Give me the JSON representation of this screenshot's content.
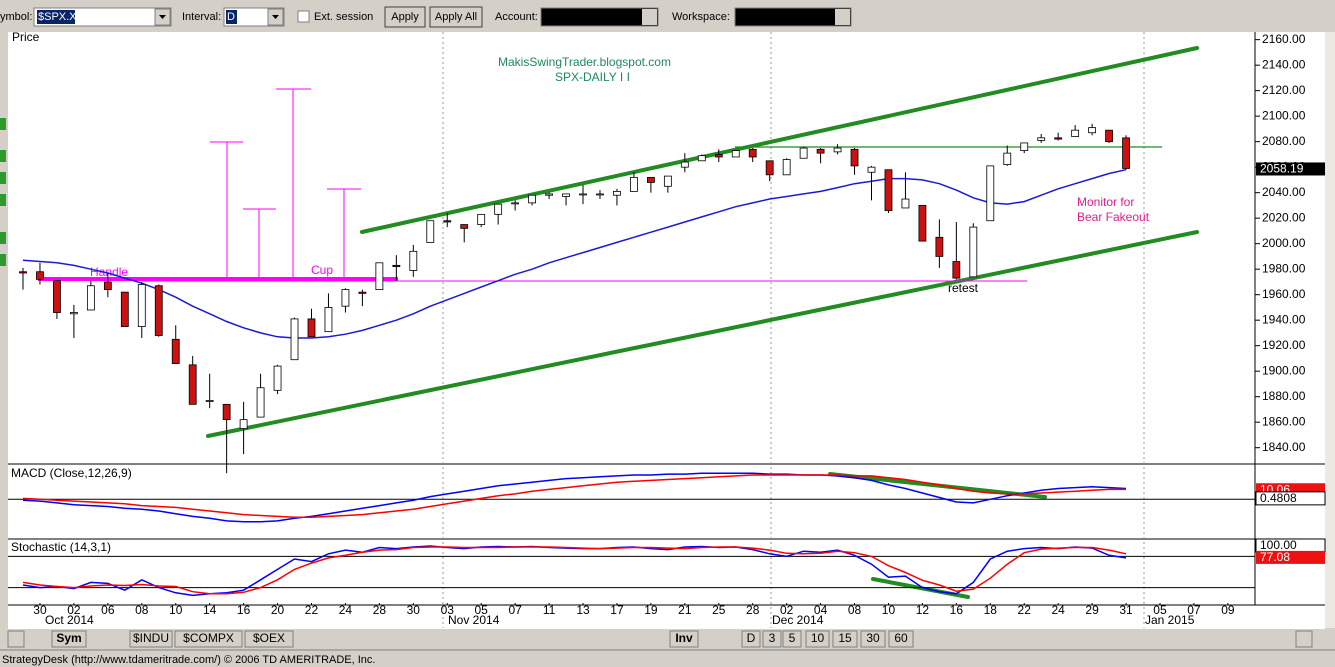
{
  "toolbar": {
    "symbol_label": "ymbol:",
    "symbol": "$SPX.X",
    "interval_label": "Interval:",
    "interval": "D",
    "ext_session": "Ext. session",
    "apply": "Apply",
    "apply_all": "Apply All",
    "account_label": "Account:",
    "workspace_label": "Workspace:"
  },
  "annotations": {
    "site": "MakisSwingTrader.blogspot.com",
    "subtitle": "SPX-DAILY  I I",
    "handle": "Handle",
    "cup": "Cup",
    "retest": "retest",
    "monitor_1": "Monitor for",
    "monitor_2": "Bear Fakeout"
  },
  "months": [
    "Oct 2014",
    "Nov 2014",
    "Dec 2014",
    "Jan 2015"
  ],
  "bottom_bar": {
    "tabs": [
      "Sym",
      "$INDU",
      "$COMPX",
      "$OEX"
    ],
    "inv": "Inv",
    "periods": [
      "D",
      "3",
      "5",
      "10",
      "15",
      "30",
      "60"
    ]
  },
  "status": "StrategyDesk (http://www.tdameritrade.com/) © 2006 TD AMERITRADE, Inc.",
  "chart_data": [
    {
      "type": "candlestick",
      "title": "Price",
      "categories": [
        null,
        "30",
        null,
        "02",
        null,
        "06",
        null,
        "08",
        null,
        "10",
        null,
        "14",
        null,
        "16",
        null,
        "20",
        null,
        "22",
        null,
        "24",
        null,
        "28",
        null,
        "30",
        null,
        "03",
        null,
        "05",
        null,
        "07",
        null,
        "11",
        null,
        "13",
        null,
        "17",
        null,
        "19",
        null,
        "21",
        null,
        "25",
        null,
        "28",
        null,
        "02",
        null,
        "04",
        null,
        "08",
        null,
        "10",
        null,
        "12",
        null,
        "16",
        null,
        "18",
        null,
        "22",
        null,
        "24",
        null,
        "29",
        null,
        "31",
        null,
        "05",
        null,
        "07",
        null,
        "09"
      ],
      "open": [
        1978,
        1978,
        1971,
        1945,
        1948,
        1970,
        1962,
        1935,
        1967,
        1925,
        1905,
        1877,
        1874,
        1855,
        1864,
        1885,
        1909,
        1941,
        1931,
        1951,
        1962,
        1964,
        1983,
        1979,
        2001,
        2018,
        2015,
        2015,
        2023,
        2032,
        2032,
        2038,
        2037,
        2039,
        2039,
        2038,
        2041,
        2052,
        2045,
        2060,
        2065,
        2070,
        2068,
        2074,
        2065,
        2054,
        2067,
        2074,
        2072,
        2074,
        2056,
        2058,
        2028,
        2030,
        2005,
        1986,
        1974,
        2018,
        2062,
        2073,
        2081,
        2083,
        2084,
        2087,
        2089,
        2083,
        null,
        null,
        null,
        null,
        null,
        null
      ],
      "high": [
        1981,
        1985,
        1971,
        1952,
        1971,
        1977,
        1962,
        1970,
        1968,
        1936,
        1912,
        1898,
        1874,
        1876,
        1898,
        1905,
        1942,
        1949,
        1961,
        1965,
        1964,
        1985,
        1991,
        1999,
        2018,
        2024,
        2015,
        2023,
        2031,
        2034,
        2038,
        2040,
        2039,
        2046,
        2042,
        2043,
        2056,
        2052,
        2053,
        2071,
        2070,
        2074,
        2073,
        2075,
        2065,
        2067,
        2076,
        2075,
        2078,
        2075,
        2061,
        2058,
        2056,
        2030,
        2019,
        2017,
        2016,
        2061,
        2077,
        2079,
        2086,
        2087,
        2093,
        2094,
        2089,
        2085,
        null,
        null,
        null,
        null,
        null,
        null
      ],
      "low": [
        1964,
        1968,
        1941,
        1926,
        1948,
        1958,
        1935,
        1926,
        1927,
        1906,
        1874,
        1871,
        1820,
        1835,
        1864,
        1882,
        1909,
        1927,
        1931,
        1946,
        1951,
        1964,
        1971,
        1974,
        2001,
        2013,
        2001,
        2013,
        2015,
        2026,
        2030,
        2035,
        2030,
        2031,
        2035,
        2030,
        2041,
        2040,
        2040,
        2056,
        2065,
        2064,
        2068,
        2064,
        2049,
        2054,
        2067,
        2063,
        2070,
        2054,
        2034,
        2024,
        2028,
        2002,
        1981,
        1972,
        1974,
        2018,
        2061,
        2071,
        2079,
        2081,
        2084,
        2085,
        2079,
        2058,
        null,
        null,
        null,
        null,
        null,
        null
      ],
      "close": [
        1977,
        1972,
        1946,
        1946,
        1967,
        1964,
        1935,
        1968,
        1928,
        1906,
        1874,
        1877,
        1862,
        1862,
        1887,
        1904,
        1941,
        1927,
        1950,
        1964,
        1961,
        1985,
        1982,
        1994,
        2018,
        2017,
        2012,
        2023,
        2031,
        2032,
        2038,
        2039,
        2039,
        2039,
        2039,
        2041,
        2052,
        2048,
        2053,
        2064,
        2069,
        2068,
        2073,
        2068,
        2054,
        2066,
        2075,
        2071,
        2075,
        2061,
        2060,
        2026,
        2035,
        2002,
        1990,
        1973,
        2013,
        2061,
        2071,
        2079,
        2083,
        2082,
        2089,
        2091,
        2080,
        2059,
        null,
        null,
        null,
        null,
        null,
        null
      ],
      "up_color": "#ffffff",
      "down_color": "#cc1111",
      "series": [
        {
          "color": "#1a1ad8",
          "values": [
            1987,
            1986,
            1985,
            1983,
            1980,
            1977,
            1973,
            1969,
            1964,
            1958,
            1951,
            1945,
            1939,
            1934,
            1930,
            1927,
            1926,
            1926,
            1927,
            1929,
            1932,
            1936,
            1940,
            1945,
            1951,
            1956,
            1961,
            1966,
            1971,
            1976,
            1980,
            1985,
            1989,
            1993,
            1997,
            2001,
            2005,
            2009,
            2013,
            2017,
            2021,
            2025,
            2029,
            2032,
            2035,
            2037,
            2039,
            2041,
            2044,
            2047,
            2049,
            2051,
            2051,
            2050,
            2047,
            2042,
            2036,
            2032,
            2031,
            2033,
            2038,
            2043,
            2047,
            2051,
            2055,
            2058,
            null,
            null,
            null,
            null,
            null,
            null
          ]
        }
      ],
      "ylim": [
        1828,
        2166
      ],
      "yticks": [
        {
          "value": 1840,
          "label": "1840.00"
        },
        {
          "value": 1860,
          "label": "1860.00"
        },
        {
          "value": 1880,
          "label": "1880.00"
        },
        {
          "value": 1900,
          "label": "1900.00"
        },
        {
          "value": 1920,
          "label": "1920.00"
        },
        {
          "value": 1940,
          "label": "1940.00"
        },
        {
          "value": 1960,
          "label": "1960.00"
        },
        {
          "value": 1980,
          "label": "1980.00"
        },
        {
          "value": 2000,
          "label": "2000.00"
        },
        {
          "value": 2020,
          "label": "2020.00"
        },
        {
          "value": 2040,
          "label": "2040.00"
        },
        {
          "value": 2060,
          "label": "2060.00"
        },
        {
          "value": 2080,
          "label": "2080.00"
        },
        {
          "value": 2100,
          "label": "2100.00"
        },
        {
          "value": 2120,
          "label": "2120.00"
        },
        {
          "value": 2140,
          "label": "2140.00"
        },
        {
          "value": 2160,
          "label": "2160.00"
        }
      ],
      "last_labels": [
        {
          "value": 2058.19,
          "color": "#000000"
        }
      ]
    },
    {
      "type": "line",
      "title": "MACD (Close,12,26,9)",
      "series": [
        {
          "color": "#0000ff",
          "values": [
            -1,
            -2,
            -4,
            -6,
            -7,
            -8,
            -10,
            -11,
            -13,
            -16,
            -19,
            -21,
            -24,
            -25,
            -25,
            -24,
            -21,
            -19,
            -16,
            -13,
            -10,
            -7,
            -4,
            -1,
            3,
            6,
            9,
            12,
            15,
            17,
            19,
            21,
            23,
            24,
            25,
            26,
            27,
            27,
            28,
            28,
            29,
            29,
            29,
            29,
            28,
            28,
            27,
            27,
            26,
            24,
            21,
            16,
            12,
            7,
            2,
            -3,
            -4,
            0,
            4,
            7,
            10,
            12,
            13,
            14,
            13,
            12,
            null,
            null,
            null,
            null,
            null,
            null
          ]
        },
        {
          "color": "#ff0000",
          "values": [
            1,
            0,
            -1,
            -2,
            -3,
            -4,
            -5,
            -7,
            -8,
            -9,
            -11,
            -13,
            -15,
            -17,
            -18,
            -19,
            -20,
            -20,
            -19,
            -18,
            -17,
            -15,
            -13,
            -11,
            -8,
            -5,
            -2,
            1,
            4,
            6,
            9,
            11,
            13,
            15,
            17,
            19,
            20,
            21,
            22,
            23,
            24,
            25,
            26,
            27,
            27,
            27,
            27,
            27,
            27,
            26,
            26,
            24,
            22,
            19,
            16,
            12,
            9,
            7,
            6,
            6,
            7,
            8,
            9,
            10,
            11,
            11,
            null,
            null,
            null,
            null,
            null,
            null
          ]
        }
      ],
      "ylim": [
        -43,
        37
      ],
      "hlines": [
        0
      ],
      "last_labels": [
        {
          "value": 10.06,
          "color": "#ee1111"
        },
        {
          "value": 0.4808,
          "color": "#ffffff"
        }
      ]
    },
    {
      "type": "line",
      "title": "Stochastic (14,3,1)",
      "series": [
        {
          "color": "#0000ff",
          "values": [
            25,
            20,
            22,
            18,
            30,
            28,
            15,
            35,
            20,
            10,
            5,
            8,
            10,
            15,
            35,
            55,
            75,
            70,
            85,
            92,
            88,
            97,
            95,
            98,
            100,
            97,
            95,
            98,
            99,
            98,
            99,
            97,
            96,
            95,
            95,
            97,
            98,
            95,
            93,
            98,
            99,
            97,
            98,
            93,
            85,
            80,
            90,
            88,
            92,
            82,
            65,
            40,
            42,
            20,
            12,
            8,
            30,
            75,
            90,
            95,
            97,
            95,
            98,
            96,
            82,
            77,
            null,
            null,
            null,
            null,
            null,
            null
          ]
        },
        {
          "color": "#ff0000",
          "values": [
            30,
            25,
            22,
            20,
            23,
            25,
            24,
            26,
            23,
            22,
            12,
            8,
            8,
            11,
            20,
            35,
            55,
            67,
            77,
            82,
            88,
            92,
            93,
            97,
            98,
            98,
            97,
            97,
            97,
            98,
            98,
            98,
            97,
            96,
            95,
            96,
            97,
            97,
            96,
            95,
            97,
            98,
            98,
            96,
            92,
            86,
            85,
            86,
            90,
            87,
            80,
            62,
            49,
            34,
            25,
            13,
            17,
            38,
            65,
            87,
            94,
            96,
            97,
            97,
            92,
            85,
            null,
            null,
            null,
            null,
            null,
            null
          ]
        }
      ],
      "ylim": [
        -13.5,
        111.5
      ],
      "hlines": [
        80,
        20
      ],
      "last_labels": [
        {
          "value": {
            "value": 100,
            "label": "100.00"
          },
          "color": "#ffffff"
        },
        {
          "value": 77.08,
          "color": "#ee1111"
        }
      ]
    }
  ]
}
